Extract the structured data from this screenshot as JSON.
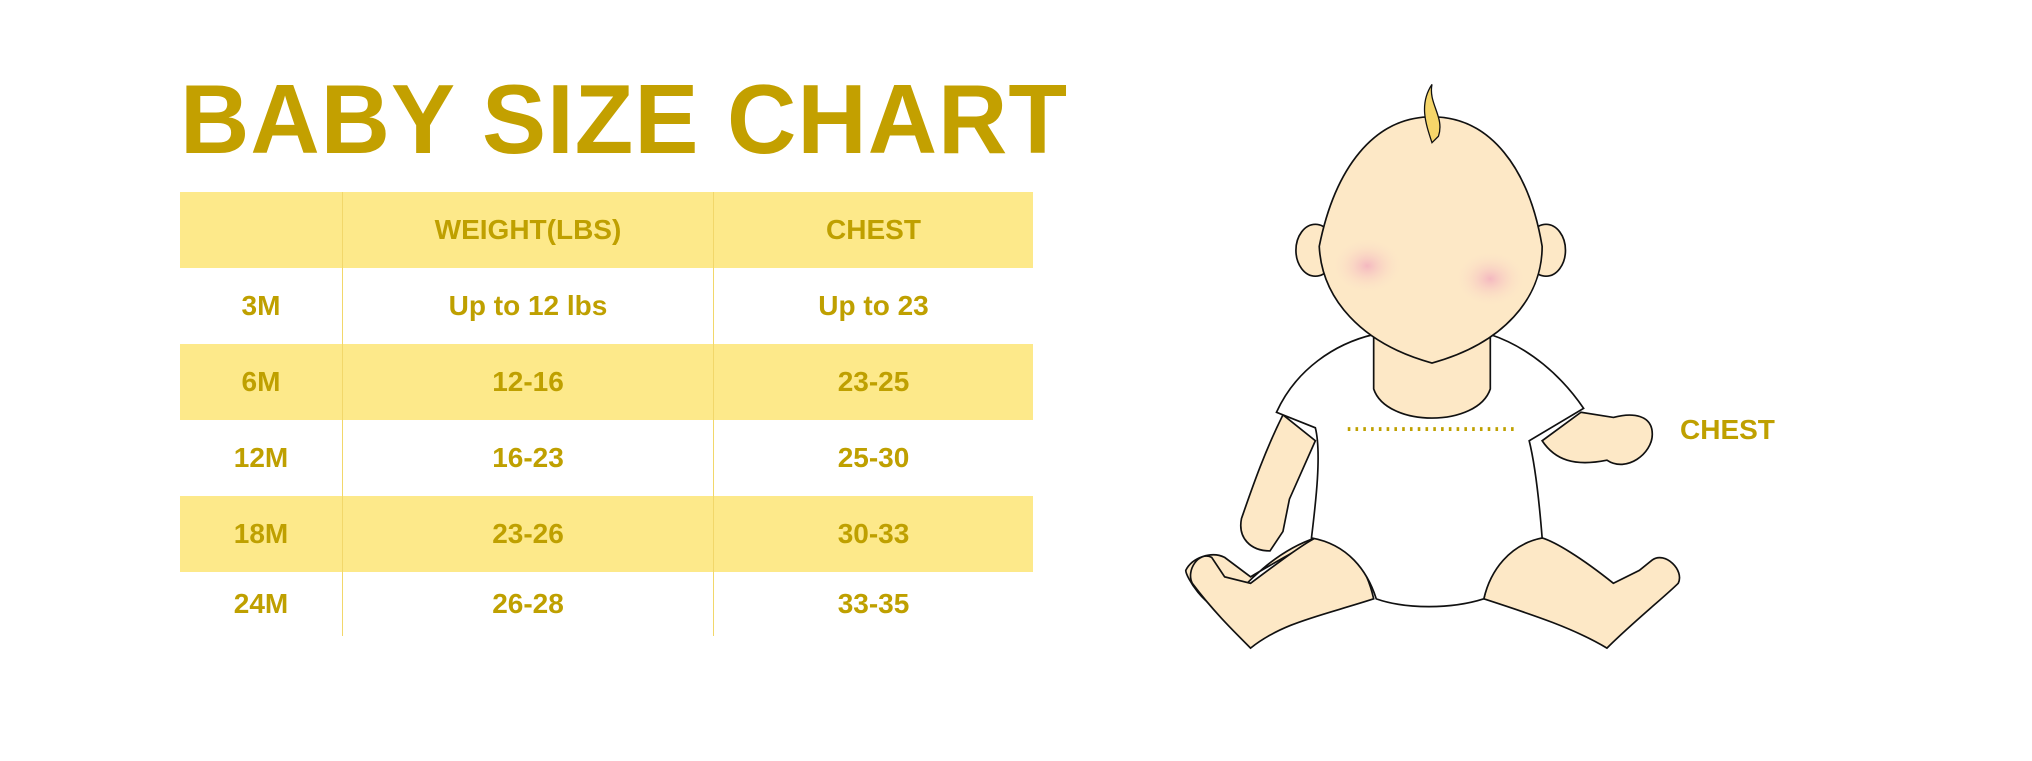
{
  "title": "BABY SIZE CHART",
  "colors": {
    "accent": "#C3A000",
    "band": "#FDE98A",
    "skin": "#FDE8C6",
    "blush": "#F4B8C0"
  },
  "table": {
    "headers": [
      "",
      "WEIGHT(LBS)",
      "CHEST"
    ],
    "rows": [
      [
        "3M",
        "Up to 12 lbs",
        "Up to 23"
      ],
      [
        "6M",
        "12-16",
        "23-25"
      ],
      [
        "12M",
        "16-23",
        "25-30"
      ],
      [
        "18M",
        "23-26",
        "30-33"
      ],
      [
        "24M",
        "26-28",
        "33-35"
      ]
    ]
  },
  "illustration": {
    "chest_label": "CHEST"
  }
}
